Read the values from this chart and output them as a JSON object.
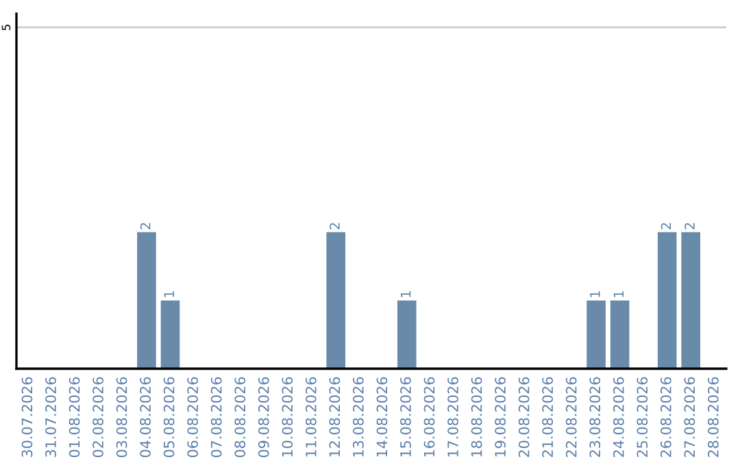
{
  "chart_data": {
    "type": "bar",
    "categories": [
      "30.07.2026",
      "31.07.2026",
      "01.08.2026",
      "02.08.2026",
      "03.08.2026",
      "04.08.2026",
      "05.08.2026",
      "06.08.2026",
      "07.08.2026",
      "08.08.2026",
      "09.08.2026",
      "10.08.2026",
      "11.08.2026",
      "12.08.2026",
      "13.08.2026",
      "14.08.2026",
      "15.08.2026",
      "16.08.2026",
      "17.08.2026",
      "18.08.2026",
      "19.08.2026",
      "20.08.2026",
      "21.08.2026",
      "22.08.2026",
      "23.08.2026",
      "24.08.2026",
      "25.08.2026",
      "26.08.2026",
      "27.08.2026",
      "28.08.2026"
    ],
    "values": [
      0,
      0,
      0,
      0,
      0,
      2,
      1,
      0,
      0,
      0,
      0,
      0,
      0,
      2,
      0,
      0,
      1,
      0,
      0,
      0,
      0,
      0,
      0,
      0,
      1,
      1,
      0,
      2,
      2,
      0
    ],
    "value_labels": [
      null,
      null,
      null,
      null,
      null,
      "2",
      "1",
      null,
      null,
      null,
      null,
      null,
      null,
      "2",
      null,
      null,
      "1",
      null,
      null,
      null,
      null,
      null,
      null,
      null,
      "1",
      "1",
      null,
      "2",
      "2",
      null
    ],
    "color": "#6a8aaa",
    "ylim": [
      0,
      5.2
    ],
    "yticks": [
      5
    ],
    "grid": "y",
    "legend": false
  }
}
